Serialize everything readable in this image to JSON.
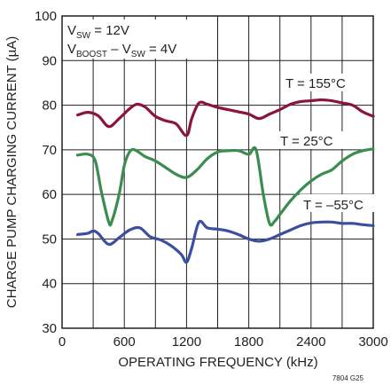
{
  "chart_data": {
    "type": "line",
    "title": "",
    "xlabel": "OPERATING FREQUENCY (kHz)",
    "ylabel": "CHARGE PUMP CHARGING CURRENT (µA)",
    "xlim": [
      0,
      3000
    ],
    "ylim": [
      30,
      100
    ],
    "xticks": [
      0,
      600,
      1200,
      1800,
      2400,
      3000
    ],
    "yticks": [
      30,
      40,
      50,
      60,
      70,
      80,
      90,
      100
    ],
    "grid": true,
    "conditions": {
      "line1_main": "V",
      "line1_sub": "SW",
      "line1_rest": " = 12V",
      "line2_main": "V",
      "line2_sub": "BOOST",
      "line2_mid": " – V",
      "line2_sub2": "SW",
      "line2_rest": " = 4V"
    },
    "figure_id": "7804 G25",
    "series": [
      {
        "name": "T = 155°C",
        "color": "#8b1538",
        "x": [
          150,
          250,
          350,
          450,
          550,
          650,
          720,
          800,
          900,
          1000,
          1100,
          1200,
          1250,
          1320,
          1400,
          1500,
          1600,
          1700,
          1800,
          1900,
          2000,
          2100,
          2200,
          2300,
          2400,
          2500,
          2600,
          2700,
          2800,
          2900,
          3000
        ],
        "values": [
          77.8,
          78.4,
          77.6,
          75.2,
          77.0,
          79.2,
          80.2,
          79.6,
          77.5,
          76.5,
          75.8,
          73.2,
          77.0,
          80.5,
          80.2,
          79.5,
          79.0,
          78.5,
          78.0,
          77.0,
          78.0,
          79.0,
          80.2,
          80.8,
          81.0,
          81.2,
          81.0,
          80.5,
          80.0,
          78.5,
          77.5
        ]
      },
      {
        "name": "T = 25°C",
        "color": "#3a8c4f",
        "x": [
          150,
          250,
          320,
          380,
          450,
          480,
          550,
          600,
          650,
          700,
          800,
          900,
          1000,
          1100,
          1200,
          1300,
          1400,
          1500,
          1600,
          1700,
          1800,
          1870,
          1940,
          2000,
          2050,
          2100,
          2200,
          2300,
          2400,
          2500,
          2600,
          2700,
          2800,
          2900,
          3000
        ],
        "values": [
          68.8,
          69.0,
          67.5,
          60.5,
          53.8,
          54.0,
          60.0,
          66.5,
          69.5,
          70.0,
          68.5,
          67.5,
          66.0,
          64.5,
          63.8,
          65.5,
          68.0,
          69.5,
          69.8,
          69.8,
          69.0,
          70.0,
          60.0,
          53.5,
          54.0,
          55.5,
          58.5,
          61.0,
          63.0,
          64.5,
          65.5,
          67.5,
          69.0,
          69.8,
          70.2
        ]
      },
      {
        "name": "T = –55°C",
        "color": "#3b4fa0",
        "x": [
          150,
          250,
          300,
          350,
          450,
          550,
          650,
          750,
          850,
          950,
          1050,
          1150,
          1200,
          1250,
          1320,
          1400,
          1500,
          1600,
          1700,
          1800,
          1900,
          2000,
          2100,
          2200,
          2300,
          2400,
          2500,
          2600,
          2700,
          2800,
          2900,
          3000
        ],
        "values": [
          51.0,
          51.3,
          51.8,
          51.2,
          48.8,
          50.3,
          52.0,
          52.5,
          50.5,
          49.8,
          48.5,
          46.5,
          44.8,
          48.0,
          53.8,
          52.5,
          52.2,
          51.8,
          51.0,
          50.0,
          49.5,
          50.0,
          51.0,
          52.0,
          53.0,
          53.6,
          53.8,
          53.8,
          53.5,
          53.5,
          53.2,
          53.0
        ]
      }
    ],
    "annotations": [
      "T = 155°C",
      "T = 25°C",
      "T = –55°C"
    ]
  }
}
